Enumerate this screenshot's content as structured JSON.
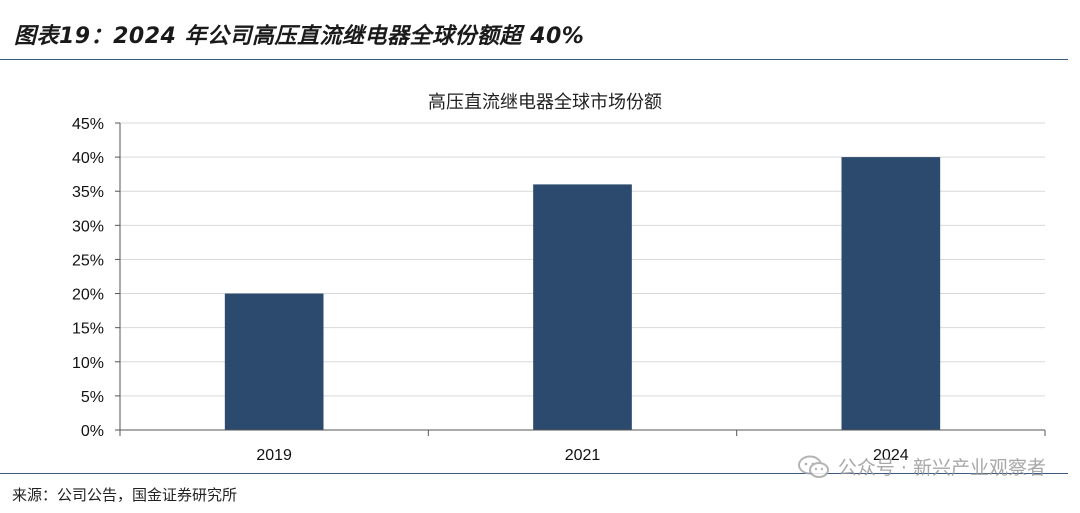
{
  "figure_title": "图表19：2024 年公司高压直流继电器全球份额超 40%",
  "source_note": "来源：公司公告，国金证券研究所",
  "watermark": {
    "text": "公众号 · 新兴产业观察者",
    "icon": "wechat-icon"
  },
  "colors": {
    "bar": "#2b4a6e",
    "rule": "#3a5a80",
    "grid": "#d9d9d9"
  },
  "chart_data": {
    "type": "bar",
    "title": "高压直流继电器全球市场份额",
    "categories": [
      "2019",
      "2021",
      "2024"
    ],
    "values": [
      20,
      36,
      40
    ],
    "value_format": "percent",
    "ylim": [
      0,
      45
    ],
    "yticks": [
      "0%",
      "5%",
      "10%",
      "15%",
      "20%",
      "25%",
      "30%",
      "35%",
      "40%",
      "45%"
    ],
    "grid": true,
    "legend": "none"
  }
}
